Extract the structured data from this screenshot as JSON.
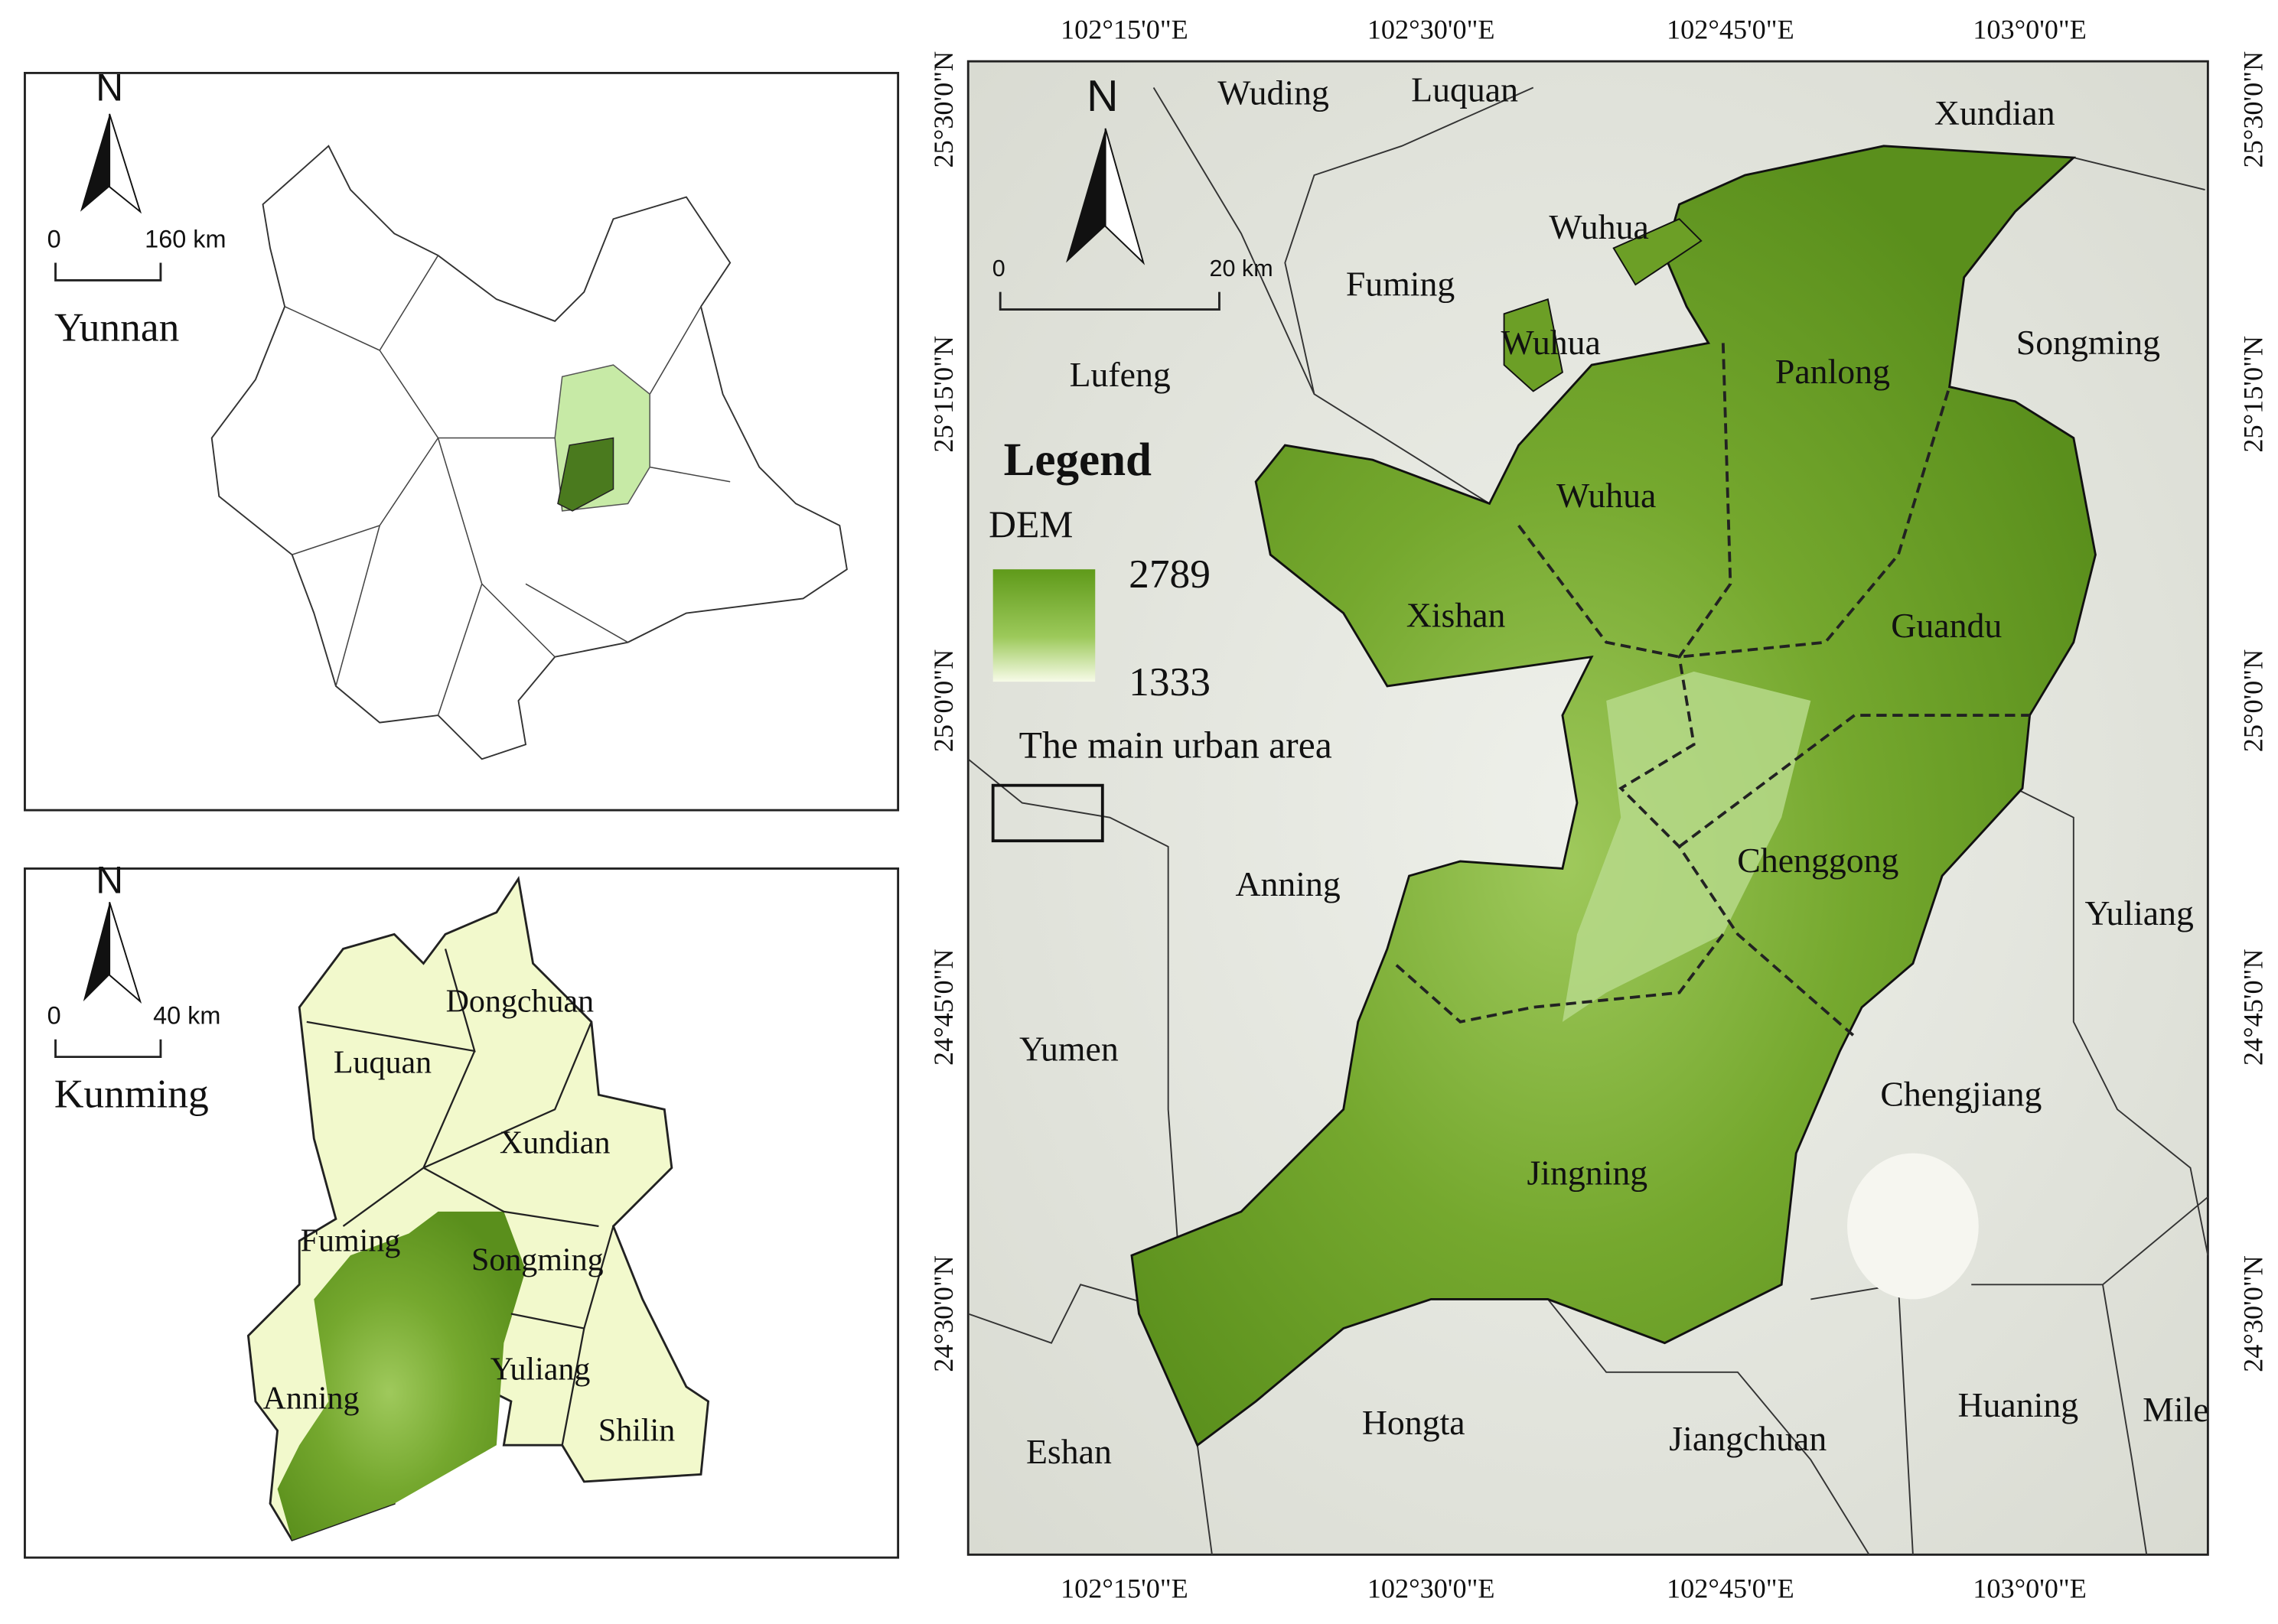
{
  "yunnan_inset": {
    "north": "N",
    "scale": {
      "start": 0,
      "end": "160 km"
    },
    "label": "Yunnan"
  },
  "kunming_inset": {
    "north": "N",
    "scale": {
      "start": 0,
      "end": "40 km"
    },
    "label": "Kunming",
    "districts": [
      "Dongchuan",
      "Luquan",
      "Xundian",
      "Fuming",
      "Songming",
      "Anning",
      "Yuliang",
      "Shilin"
    ]
  },
  "main_map": {
    "north": "N",
    "scale": {
      "start": 0,
      "end": "20 km"
    },
    "top_lon_labels": [
      "102°15'0\"E",
      "102°30'0\"E",
      "102°45'0\"E",
      "103°0'0\"E"
    ],
    "bottom_lon_labels": [
      "102°15'0\"E",
      "102°30'0\"E",
      "102°45'0\"E",
      "103°0'0\"E"
    ],
    "left_lat_labels": [
      "25°30'0\"N",
      "25°15'0\"N",
      "25°0'0\"N",
      "24°45'0\"N",
      "24°30'0\"N"
    ],
    "right_lat_labels": [
      "25°30'0\"N",
      "25°15'0\"N",
      "25°0'0\"N",
      "24°45'0\"N",
      "24°30'0\"N"
    ],
    "legend": {
      "title": "Legend",
      "dem_title": "DEM",
      "dem_max": 2789,
      "dem_min": 1333,
      "urban_label": "The main urban area"
    },
    "districts": [
      "Panlong",
      "Wuhua",
      "Xishan",
      "Guandu",
      "Chenggong",
      "Jingning"
    ],
    "neighbors": [
      "Wuding",
      "Luquan",
      "Xundian",
      "Wuhua",
      "Wuhua",
      "Fuming",
      "Songming",
      "Lufeng",
      "Anning",
      "Yuliang",
      "Yumen",
      "Chengjiang",
      "Hongta",
      "Jiangchuan",
      "Huaning",
      "Mile",
      "Eshan"
    ]
  }
}
